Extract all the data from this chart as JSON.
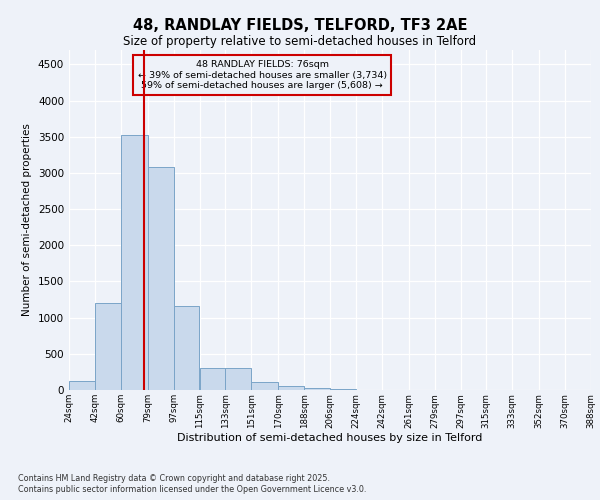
{
  "title1": "48, RANDLAY FIELDS, TELFORD, TF3 2AE",
  "title2": "Size of property relative to semi-detached houses in Telford",
  "xlabel": "Distribution of semi-detached houses by size in Telford",
  "ylabel": "Number of semi-detached properties",
  "footnote1": "Contains HM Land Registry data © Crown copyright and database right 2025.",
  "footnote2": "Contains public sector information licensed under the Open Government Licence v3.0.",
  "annotation_line1": "48 RANDLAY FIELDS: 76sqm",
  "annotation_line2": "← 39% of semi-detached houses are smaller (3,734)",
  "annotation_line3": "59% of semi-detached houses are larger (5,608) →",
  "property_size": 76,
  "bar_left_edges": [
    24,
    42,
    60,
    79,
    97,
    115,
    133,
    151,
    170,
    188,
    206,
    224,
    242,
    261,
    279,
    297,
    315,
    333,
    352,
    370
  ],
  "bar_widths": [
    18,
    18,
    19,
    18,
    18,
    18,
    18,
    19,
    18,
    18,
    18,
    18,
    19,
    18,
    18,
    18,
    18,
    19,
    18,
    18
  ],
  "bar_heights": [
    120,
    1200,
    3530,
    3080,
    1160,
    310,
    310,
    105,
    55,
    30,
    15,
    5,
    3,
    2,
    1,
    1,
    0,
    0,
    0,
    0
  ],
  "bar_color": "#c9d9ec",
  "bar_edge_color": "#7aa4c8",
  "red_line_color": "#cc0000",
  "bg_color": "#eef2f9",
  "ylim": [
    0,
    4700
  ],
  "yticks": [
    0,
    500,
    1000,
    1500,
    2000,
    2500,
    3000,
    3500,
    4000,
    4500
  ],
  "x_labels": [
    "24sqm",
    "42sqm",
    "60sqm",
    "79sqm",
    "97sqm",
    "115sqm",
    "133sqm",
    "151sqm",
    "170sqm",
    "188sqm",
    "206sqm",
    "224sqm",
    "242sqm",
    "261sqm",
    "279sqm",
    "297sqm",
    "315sqm",
    "333sqm",
    "352sqm",
    "370sqm",
    "388sqm"
  ]
}
